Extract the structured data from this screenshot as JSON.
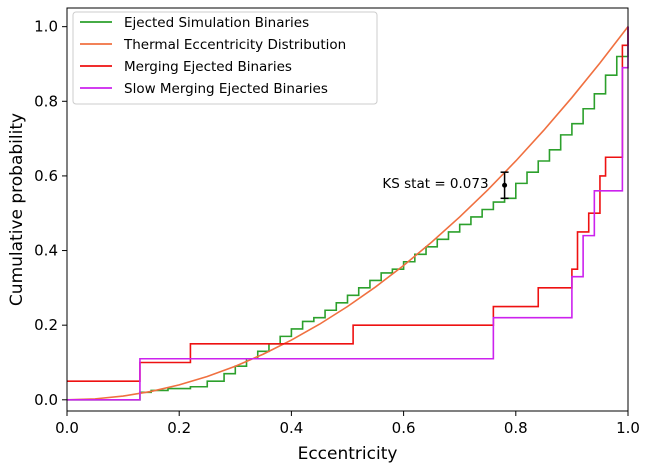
{
  "chart_data": {
    "type": "line",
    "title": "",
    "xlabel": "Eccentricity",
    "ylabel": "Cumulative probability",
    "xlim": [
      0.0,
      1.0
    ],
    "ylim": [
      -0.03,
      1.05
    ],
    "xticks": [
      "0.0",
      "0.2",
      "0.4",
      "0.6",
      "0.8",
      "1.0"
    ],
    "yticks": [
      "0.0",
      "0.2",
      "0.4",
      "0.6",
      "0.8",
      "1.0"
    ],
    "grid": false,
    "legend_position": "top-left",
    "series": [
      {
        "name": "Ejected Simulation Binaries",
        "color": "#2ca02c",
        "style": "step",
        "x": [
          0.0,
          0.13,
          0.15,
          0.18,
          0.22,
          0.25,
          0.28,
          0.3,
          0.32,
          0.34,
          0.36,
          0.38,
          0.4,
          0.42,
          0.44,
          0.46,
          0.48,
          0.5,
          0.52,
          0.54,
          0.56,
          0.58,
          0.6,
          0.62,
          0.64,
          0.66,
          0.68,
          0.7,
          0.72,
          0.74,
          0.76,
          0.78,
          0.8,
          0.82,
          0.84,
          0.86,
          0.88,
          0.9,
          0.92,
          0.94,
          0.96,
          0.98,
          1.0
        ],
        "y": [
          0.0,
          0.02,
          0.025,
          0.03,
          0.035,
          0.05,
          0.07,
          0.09,
          0.11,
          0.13,
          0.15,
          0.17,
          0.19,
          0.21,
          0.22,
          0.24,
          0.26,
          0.28,
          0.3,
          0.32,
          0.34,
          0.35,
          0.37,
          0.39,
          0.41,
          0.43,
          0.45,
          0.47,
          0.49,
          0.51,
          0.53,
          0.54,
          0.58,
          0.61,
          0.64,
          0.67,
          0.71,
          0.74,
          0.78,
          0.82,
          0.87,
          0.92,
          1.0
        ]
      },
      {
        "name": "Thermal Eccentricity Distribution",
        "color": "#f07040",
        "style": "line",
        "x": [
          0.0,
          0.05,
          0.1,
          0.15,
          0.2,
          0.25,
          0.3,
          0.35,
          0.4,
          0.45,
          0.5,
          0.55,
          0.6,
          0.65,
          0.7,
          0.75,
          0.8,
          0.85,
          0.9,
          0.95,
          1.0
        ],
        "y": [
          0.0,
          0.0025,
          0.01,
          0.0225,
          0.04,
          0.0625,
          0.09,
          0.1225,
          0.16,
          0.2025,
          0.25,
          0.3025,
          0.36,
          0.4225,
          0.49,
          0.5625,
          0.64,
          0.7225,
          0.81,
          0.9025,
          1.0
        ]
      },
      {
        "name": "Merging Ejected Binaries",
        "color": "#ee1111",
        "style": "step",
        "x": [
          0.0,
          0.13,
          0.22,
          0.51,
          0.76,
          0.84,
          0.9,
          0.91,
          0.93,
          0.95,
          0.96,
          0.99,
          1.0
        ],
        "y": [
          0.05,
          0.1,
          0.15,
          0.2,
          0.25,
          0.3,
          0.35,
          0.45,
          0.5,
          0.6,
          0.65,
          0.95,
          1.0
        ]
      },
      {
        "name": "Slow Merging Ejected Binaries",
        "color": "#cc22ee",
        "style": "step",
        "x": [
          0.0,
          0.13,
          0.76,
          0.9,
          0.92,
          0.94,
          0.99,
          1.0
        ],
        "y": [
          0.0,
          0.11,
          0.22,
          0.33,
          0.44,
          0.56,
          0.89,
          1.0
        ]
      }
    ],
    "annotations": [
      {
        "text": "KS stat = 0.073",
        "x": 0.78,
        "y_low": 0.54,
        "y_high": 0.61,
        "point_y": 0.575
      }
    ]
  }
}
